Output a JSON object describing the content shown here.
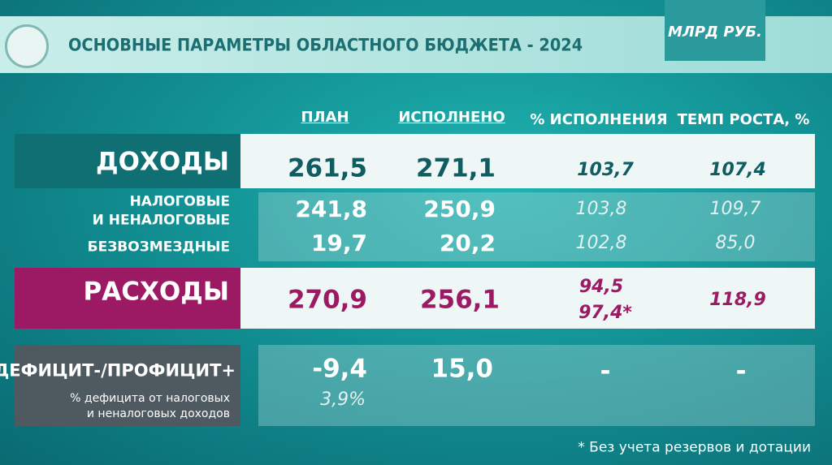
{
  "header": {
    "title": "ОСНОВНЫЕ ПАРАМЕТРЫ ОБЛАСТНОГО БЮДЖЕТА - 2024",
    "unit": "МЛРД РУБ."
  },
  "table": {
    "columns": [
      "ПЛАН",
      "ИСПОЛНЕНО",
      "% ИСПОЛНЕНИЯ",
      "ТЕМП РОСТА, %"
    ],
    "rows": [
      {
        "label": "ДОХОДЫ",
        "values": [
          "261,5",
          "271,1",
          "103,7",
          "107,4"
        ]
      },
      {
        "label": [
          "НАЛОГОВЫЕ",
          "И НЕНАЛОГОВЫЕ"
        ],
        "values": [
          "241,8",
          "250,9",
          "103,8",
          "109,7"
        ]
      },
      {
        "label": "БЕЗВОЗМЕЗДНЫЕ",
        "values": [
          "19,7",
          "20,2",
          "102,8",
          "85,0"
        ]
      },
      {
        "label": "РАСХОДЫ",
        "values": [
          "270,9",
          "256,1",
          [
            "94,5",
            "97,4*"
          ],
          "118,9"
        ]
      },
      {
        "label": "ДЕФИЦИТ-/ПРОФИЦИТ+",
        "note": [
          "% дефицита от налоговых",
          "и неналоговых доходов"
        ],
        "values": [
          "-9,4",
          "15,0",
          "-",
          "-"
        ],
        "note_value": "3,9%"
      }
    ]
  },
  "footnote": "* Без учета резервов и дотации"
}
